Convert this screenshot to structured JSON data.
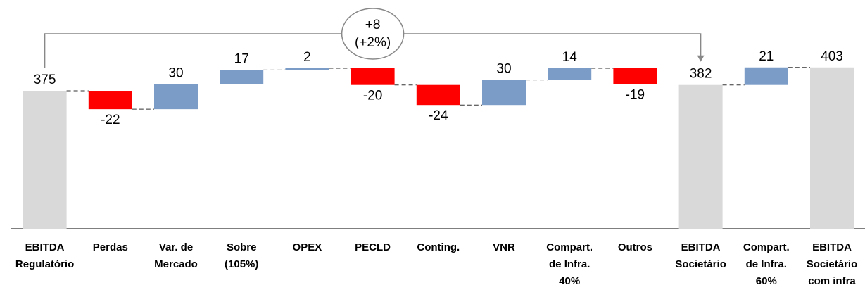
{
  "chart_data": {
    "type": "waterfall",
    "categories": [
      [
        "EBITDA",
        "Regulatório"
      ],
      [
        "Perdas"
      ],
      [
        "Var. de",
        "Mercado"
      ],
      [
        "Sobre",
        "(105%)"
      ],
      [
        "OPEX"
      ],
      [
        "PECLD"
      ],
      [
        "Conting."
      ],
      [
        "VNR"
      ],
      [
        "Compart.",
        "de Infra.",
        "40%"
      ],
      [
        "Outros"
      ],
      [
        "EBITDA",
        "Societário"
      ],
      [
        "Compart.",
        "de Infra.",
        "60%"
      ],
      [
        "EBITDA",
        "Societário",
        "com infra"
      ]
    ],
    "values": [
      375,
      -22,
      30,
      17,
      2,
      -20,
      -24,
      30,
      14,
      -19,
      382,
      21,
      403
    ],
    "measure": [
      "total",
      "relative",
      "relative",
      "relative",
      "relative",
      "relative",
      "relative",
      "relative",
      "relative",
      "relative",
      "total",
      "relative",
      "total"
    ],
    "colors": {
      "total": "#d9d9d9",
      "increase": "#7b9cc7",
      "decrease": "#ff0000"
    },
    "ylim": [
      210,
      415
    ],
    "annotation": {
      "from": 0,
      "to": 10,
      "lines": [
        "+8",
        "(+2%)"
      ]
    }
  }
}
